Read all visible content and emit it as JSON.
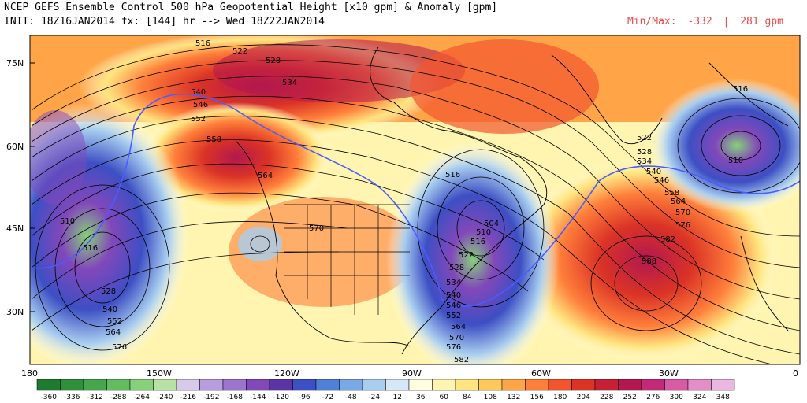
{
  "header": {
    "title": "NCEP GEFS Ensemble Control 500 hPa Geopotential Height [x10 gpm] & Anomaly [gpm]",
    "init_line": "INIT: 18Z16JAN2014  fx: [144] hr --> Wed 18Z22JAN2014",
    "minmax_label": "Min/Max:",
    "min_value": "-332",
    "max_value": "281 gpm",
    "minmax_color": "#e64b4b"
  },
  "map": {
    "lat_labels": [
      "75N",
      "60N",
      "45N",
      "30N"
    ],
    "lon_labels": [
      "180",
      "150W",
      "120W",
      "90W",
      "60W",
      "30W",
      "0"
    ],
    "contour_labels": [
      "516",
      "522",
      "528",
      "534",
      "540",
      "546",
      "552",
      "558",
      "564",
      "570",
      "510",
      "516",
      "528",
      "540",
      "552",
      "564",
      "576",
      "516",
      "504",
      "510",
      "516",
      "522",
      "528",
      "534",
      "540",
      "546",
      "552",
      "564",
      "570",
      "576",
      "582",
      "516",
      "510",
      "522",
      "528",
      "534",
      "540",
      "546",
      "558",
      "564",
      "570",
      "576",
      "582",
      "588"
    ],
    "colors": {
      "frame": "#000000",
      "reference_contour": "#4a5cff",
      "coast": "#000000"
    }
  },
  "colorbar": {
    "labels": [
      "-360",
      "-336",
      "-312",
      "-288",
      "-264",
      "-240",
      "-216",
      "-192",
      "-168",
      "-144",
      "-120",
      "-96",
      "-72",
      "-48",
      "-24",
      "12",
      "36",
      "60",
      "84",
      "108",
      "132",
      "156",
      "180",
      "204",
      "228",
      "252",
      "276",
      "300",
      "324",
      "348"
    ],
    "colors": [
      "#1e7a2e",
      "#2e8f3c",
      "#45a64c",
      "#62bc5f",
      "#86d07a",
      "#b8e2a3",
      "#d7c9ec",
      "#b79ddd",
      "#9b74cd",
      "#8248ba",
      "#5a33a5",
      "#3d4fc4",
      "#4f7fd7",
      "#78a9e4",
      "#a8cdef",
      "#d6e8f7",
      "#fffde0",
      "#fff5b0",
      "#ffe47f",
      "#ffc85a",
      "#ffa547",
      "#ff7f3a",
      "#f2552e",
      "#db3326",
      "#c71f35",
      "#b2184f",
      "#c22a78",
      "#d85aa5",
      "#e48ec8",
      "#ebb6df"
    ]
  }
}
